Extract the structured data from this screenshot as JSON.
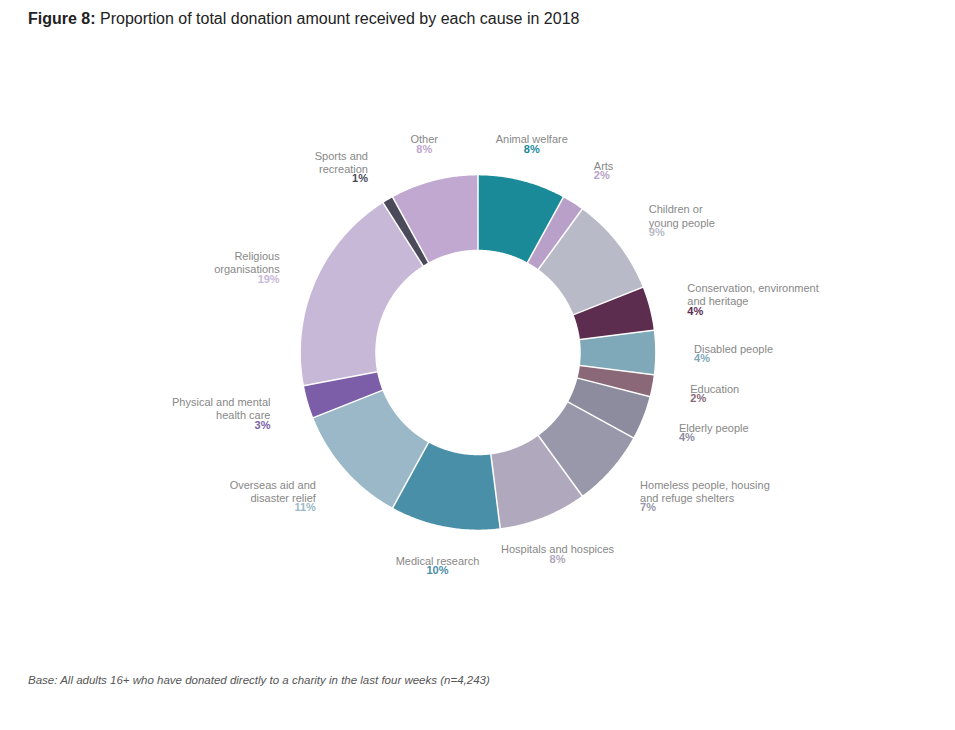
{
  "chart_data": {
    "type": "donut",
    "title": "Figure 8: Proportion of total donation amount received by each cause in 2018",
    "annotations": [
      "Base: All adults 16+ who have donated directly to a charity in the last four weeks (n=4,243)"
    ],
    "categories": [
      "Animal welfare",
      "Arts",
      "Children or\nyoung people",
      "Conservation, environment\nand heritage",
      "Disabled people",
      "Education",
      "Elderly people",
      "Homeless people, housing\nand refuge shelters",
      "Hospitals and hospices",
      "Medical research",
      "Overseas aid and\ndisaster relief",
      "Physical and mental\nhealth care",
      "Religious\norganisations",
      "Sports and\nrecreation",
      "Other"
    ],
    "values": [
      8,
      2,
      9,
      4,
      4,
      2,
      4,
      7,
      8,
      10,
      11,
      3,
      19,
      1,
      8
    ],
    "value_labels": [
      "8%",
      "2%",
      "9%",
      "4%",
      "4%",
      "2%",
      "4%",
      "7%",
      "8%",
      "10%",
      "11%",
      "3%",
      "19%",
      "1%",
      "8%"
    ],
    "colors": [
      "#1a8a99",
      "#b8a0c8",
      "#b8bac8",
      "#5c2d4e",
      "#7fa8b8",
      "#8a6878",
      "#8c8c9e",
      "#9898aa",
      "#b0a8bc",
      "#4a8fa8",
      "#9ab8c8",
      "#7b5ea7",
      "#c8b8d8",
      "#4a4a5a",
      "#c0a8d0"
    ],
    "data_labels": true
  }
}
